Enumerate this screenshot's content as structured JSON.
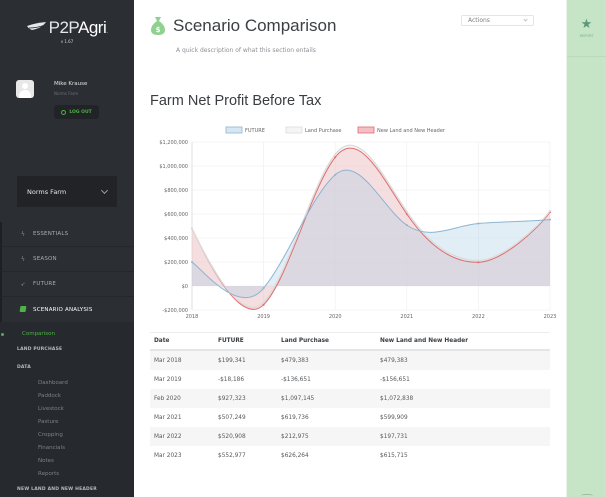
{
  "app": {
    "logo_prefix": "P2P",
    "logo_suffix": "Agri",
    "logo_dot": ".",
    "version": "v 1.67"
  },
  "user": {
    "name": "Mike Krause",
    "farm": "Norms Farm",
    "logout_label": "LOG OUT"
  },
  "farm_selector": {
    "selected": "Norms Farm"
  },
  "sidebar": {
    "items": [
      {
        "label": "ESSENTIALS",
        "icon": "lightning-icon",
        "active": false
      },
      {
        "label": "SEASON",
        "icon": "lightning-icon",
        "active": false
      },
      {
        "label": "FUTURE",
        "icon": "rocket-icon",
        "active": false
      },
      {
        "label": "SCENARIO ANALYSIS",
        "icon": "folder-icon",
        "active": true
      }
    ],
    "sub": {
      "active": "Comparison",
      "groups": [
        {
          "label": "LAND PURCHASE"
        },
        {
          "label": "DATA"
        }
      ],
      "data_links": [
        "Dashboard",
        "Paddock",
        "Livestock",
        "Pasture",
        "Cropping",
        "Financials",
        "Notes",
        "Reports"
      ],
      "last_group": "NEW LAND AND NEW HEADER"
    }
  },
  "header": {
    "icon": "money-bag-icon",
    "title": "Scenario Comparison",
    "description": "A quick description of what this section entails",
    "actions_label": "Actions"
  },
  "section": {
    "title": "Farm Net Profit Before Tax"
  },
  "chart_data": {
    "type": "area",
    "title": "Farm Net Profit Before Tax",
    "xlabel": "",
    "ylabel": "",
    "categories": [
      "2018",
      "2019",
      "2020",
      "2021",
      "2022",
      "2023"
    ],
    "y_ticks": [
      "$1,200,000",
      "$1,000,000",
      "$800,000",
      "$600,000",
      "$400,000",
      "$200,000",
      "$0",
      "-$200,000"
    ],
    "ylim": [
      -200000,
      1200000
    ],
    "legend_position": "top",
    "grid": true,
    "series": [
      {
        "name": "FUTURE",
        "color": "#8fb4cf",
        "fill": "rgba(173,205,230,0.35)",
        "values": [
          199341,
          -18186,
          927323,
          507249,
          520908,
          552977
        ]
      },
      {
        "name": "Land Purchase",
        "color": "#dcdcdc",
        "fill": "rgba(235,235,235,0.35)",
        "values": [
          479383,
          -136651,
          1097145,
          619736,
          212975,
          626264
        ]
      },
      {
        "name": "New Land and New Header",
        "color": "#e06a6e",
        "fill": "rgba(235,130,140,0.32)",
        "values": [
          479383,
          -156651,
          1072838,
          599909,
          197731,
          615715
        ]
      }
    ]
  },
  "table": {
    "headers": [
      "Date",
      "FUTURE",
      "Land Purchase",
      "New Land and New Header"
    ],
    "rows": [
      [
        "Mar 2018",
        "$199,341",
        "$479,383",
        "$479,383"
      ],
      [
        "Mar 2019",
        "-$18,186",
        "-$136,651",
        "-$156,651"
      ],
      [
        "Feb 2020",
        "$927,323",
        "$1,097,145",
        "$1,072,838"
      ],
      [
        "Mar 2021",
        "$507,249",
        "$619,736",
        "$599,909"
      ],
      [
        "Mar 2022",
        "$520,908",
        "$212,975",
        "$197,731"
      ],
      [
        "Mar 2023",
        "$552,977",
        "$626,264",
        "$615,715"
      ]
    ]
  },
  "rail": {
    "items": [
      {
        "label": "REPORT",
        "icon": "star-icon"
      }
    ]
  },
  "colors": {
    "sidebar_bg": "#2b2e33",
    "accent_green": "#4bb543",
    "rail_bg": "#c6e4c6"
  }
}
